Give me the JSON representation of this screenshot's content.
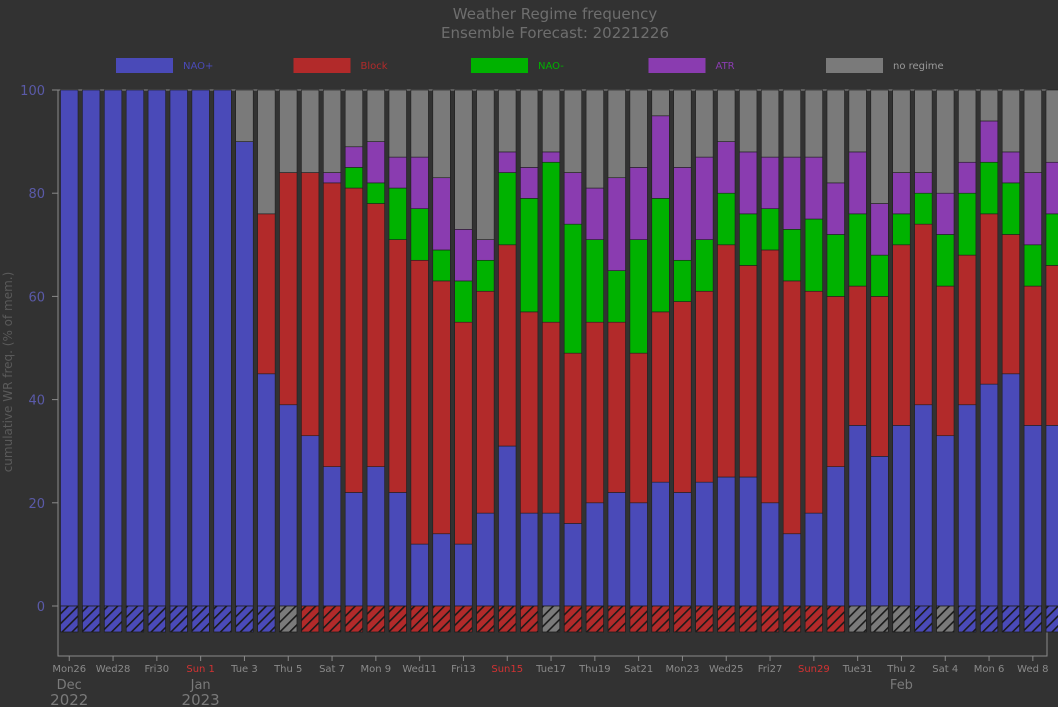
{
  "chart_data": {
    "type": "bar",
    "stacked": true,
    "title": "Weather Regime frequency",
    "subtitle": "Ensemble Forecast: 20221226",
    "ylabel": "cumulative WR freq. (% of mem.)",
    "ylim": [
      -10,
      100
    ],
    "yticks": [
      0,
      20,
      40,
      60,
      80,
      100
    ],
    "legend_position": "top",
    "grid": false,
    "dates": [
      "2022-12-26",
      "2022-12-27",
      "2022-12-28",
      "2022-12-29",
      "2022-12-30",
      "2022-12-31",
      "2023-01-01",
      "2023-01-02",
      "2023-01-03",
      "2023-01-04",
      "2023-01-05",
      "2023-01-06",
      "2023-01-07",
      "2023-01-08",
      "2023-01-09",
      "2023-01-10",
      "2023-01-11",
      "2023-01-12",
      "2023-01-13",
      "2023-01-14",
      "2023-01-15",
      "2023-01-16",
      "2023-01-17",
      "2023-01-18",
      "2023-01-19",
      "2023-01-20",
      "2023-01-21",
      "2023-01-22",
      "2023-01-23",
      "2023-01-24",
      "2023-01-25",
      "2023-01-26",
      "2023-01-27",
      "2023-01-28",
      "2023-01-29",
      "2023-01-30",
      "2023-01-31",
      "2023-02-01",
      "2023-02-02",
      "2023-02-03",
      "2023-02-04",
      "2023-02-05",
      "2023-02-06",
      "2023-02-07",
      "2023-02-08",
      "2023-02-09"
    ],
    "tick_labels": [
      {
        "index": 0,
        "label": "Mon26",
        "color": "#8a8a8a"
      },
      {
        "index": 2,
        "label": "Wed28",
        "color": "#8a8a8a"
      },
      {
        "index": 4,
        "label": "Fri30",
        "color": "#8a8a8a"
      },
      {
        "index": 6,
        "label": "Sun 1",
        "color": "#d23232"
      },
      {
        "index": 8,
        "label": "Tue 3",
        "color": "#8a8a8a"
      },
      {
        "index": 10,
        "label": "Thu 5",
        "color": "#8a8a8a"
      },
      {
        "index": 12,
        "label": "Sat 7",
        "color": "#8a8a8a"
      },
      {
        "index": 14,
        "label": "Mon 9",
        "color": "#8a8a8a"
      },
      {
        "index": 16,
        "label": "Wed11",
        "color": "#8a8a8a"
      },
      {
        "index": 18,
        "label": "Fri13",
        "color": "#8a8a8a"
      },
      {
        "index": 20,
        "label": "Sun15",
        "color": "#d23232"
      },
      {
        "index": 22,
        "label": "Tue17",
        "color": "#8a8a8a"
      },
      {
        "index": 24,
        "label": "Thu19",
        "color": "#8a8a8a"
      },
      {
        "index": 26,
        "label": "Sat21",
        "color": "#8a8a8a"
      },
      {
        "index": 28,
        "label": "Mon23",
        "color": "#8a8a8a"
      },
      {
        "index": 30,
        "label": "Wed25",
        "color": "#8a8a8a"
      },
      {
        "index": 32,
        "label": "Fri27",
        "color": "#8a8a8a"
      },
      {
        "index": 34,
        "label": "Sun29",
        "color": "#d23232"
      },
      {
        "index": 36,
        "label": "Tue31",
        "color": "#8a8a8a"
      },
      {
        "index": 38,
        "label": "Thu 2",
        "color": "#8a8a8a"
      },
      {
        "index": 40,
        "label": "Sat 4",
        "color": "#8a8a8a"
      },
      {
        "index": 42,
        "label": "Mon 6",
        "color": "#8a8a8a"
      },
      {
        "index": 44,
        "label": "Wed 8",
        "color": "#8a8a8a"
      }
    ],
    "period_labels": [
      {
        "index": 0,
        "month": "Dec",
        "year": "2022"
      },
      {
        "index": 6,
        "month": "Jan",
        "year": "2023"
      },
      {
        "index": 38,
        "month": "Feb",
        "year": ""
      }
    ],
    "series": [
      {
        "name": "NAO+",
        "color": "#4a4ab8",
        "values": [
          100,
          100,
          100,
          100,
          100,
          100,
          100,
          100,
          90,
          45,
          39,
          33,
          27,
          22,
          27,
          22,
          12,
          14,
          12,
          18,
          31,
          18,
          18,
          16,
          20,
          22,
          20,
          24,
          22,
          24,
          25,
          25,
          20,
          14,
          18,
          27,
          35,
          29,
          35,
          39,
          33,
          39,
          43,
          45,
          35,
          35
        ]
      },
      {
        "name": "Block",
        "color": "#b22a2a",
        "values": [
          0,
          0,
          0,
          0,
          0,
          0,
          0,
          0,
          0,
          31,
          45,
          51,
          55,
          59,
          51,
          49,
          55,
          49,
          43,
          43,
          39,
          39,
          37,
          33,
          35,
          33,
          29,
          33,
          37,
          37,
          45,
          41,
          49,
          49,
          43,
          33,
          27,
          31,
          35,
          35,
          29,
          29,
          33,
          27,
          27,
          31
        ]
      },
      {
        "name": "NAO-",
        "color": "#00b200",
        "values": [
          0,
          0,
          0,
          0,
          0,
          0,
          0,
          0,
          0,
          0,
          0,
          0,
          0,
          4,
          4,
          10,
          10,
          6,
          8,
          6,
          14,
          22,
          31,
          25,
          16,
          10,
          22,
          22,
          8,
          10,
          10,
          10,
          8,
          10,
          14,
          12,
          14,
          8,
          6,
          6,
          10,
          12,
          10,
          10,
          8,
          10
        ]
      },
      {
        "name": "ATR",
        "color": "#8a3cb0",
        "values": [
          0,
          0,
          0,
          0,
          0,
          0,
          0,
          0,
          0,
          0,
          0,
          0,
          2,
          4,
          8,
          6,
          10,
          14,
          10,
          4,
          4,
          6,
          2,
          10,
          10,
          18,
          14,
          16,
          18,
          16,
          10,
          12,
          10,
          14,
          12,
          10,
          12,
          10,
          8,
          4,
          8,
          6,
          8,
          6,
          14,
          10
        ]
      },
      {
        "name": "no regime",
        "color": "#7a7a7a",
        "values": [
          0,
          0,
          0,
          0,
          0,
          0,
          0,
          0,
          10,
          24,
          16,
          16,
          16,
          11,
          10,
          13,
          13,
          17,
          27,
          29,
          12,
          15,
          12,
          16,
          19,
          17,
          15,
          5,
          15,
          13,
          10,
          12,
          13,
          13,
          13,
          18,
          12,
          22,
          16,
          16,
          20,
          14,
          6,
          12,
          16,
          14
        ]
      }
    ],
    "dominant_regime": [
      "NAO+",
      "NAO+",
      "NAO+",
      "NAO+",
      "NAO+",
      "NAO+",
      "NAO+",
      "NAO+",
      "NAO+",
      "NAO+",
      "no regime",
      "Block",
      "Block",
      "Block",
      "Block",
      "Block",
      "Block",
      "Block",
      "Block",
      "Block",
      "Block",
      "Block",
      "no regime",
      "Block",
      "Block",
      "Block",
      "Block",
      "Block",
      "Block",
      "Block",
      "Block",
      "Block",
      "Block",
      "Block",
      "Block",
      "Block",
      "no regime",
      "no regime",
      "no regime",
      "NAO+",
      "no regime",
      "NAO+",
      "NAO+",
      "NAO+",
      "NAO+",
      "NAO+"
    ]
  }
}
